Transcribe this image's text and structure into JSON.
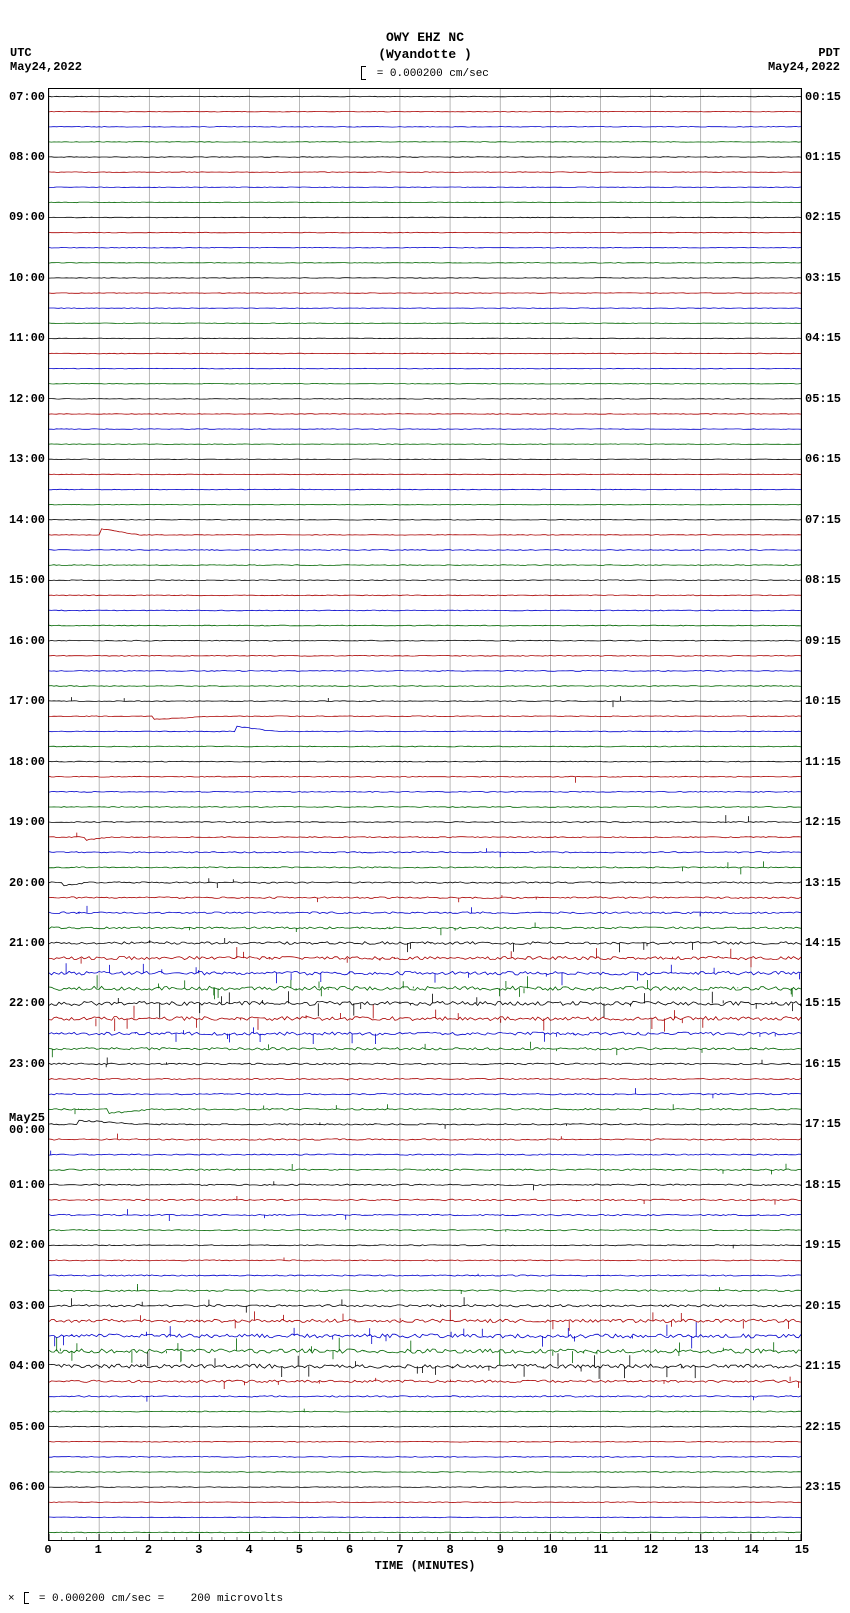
{
  "header": {
    "station": "OWY EHZ NC",
    "location": "(Wyandotte )",
    "scale_text": "= 0.000200 cm/sec"
  },
  "tz_left": "UTC",
  "date_left": "May24,2022",
  "tz_right": "PDT",
  "date_right": "May24,2022",
  "x_axis": {
    "title": "TIME (MINUTES)",
    "min": 0,
    "max": 15,
    "tick_step": 1,
    "minor_per_major": 4
  },
  "footer": {
    "text_left": "= 0.000200 cm/sec =",
    "text_right": "200 microvolts",
    "prefix": "×"
  },
  "plot": {
    "n_traces": 96,
    "colors_cycle": [
      "#000000",
      "#aa0000",
      "#0000cc",
      "#006600"
    ],
    "grid_color": "#bbbbbb",
    "grid_major_color": "#888888",
    "background": "#ffffff",
    "left_labels": [
      {
        "i": 0,
        "text": "07:00"
      },
      {
        "i": 4,
        "text": "08:00"
      },
      {
        "i": 8,
        "text": "09:00"
      },
      {
        "i": 12,
        "text": "10:00"
      },
      {
        "i": 16,
        "text": "11:00"
      },
      {
        "i": 20,
        "text": "12:00"
      },
      {
        "i": 24,
        "text": "13:00"
      },
      {
        "i": 28,
        "text": "14:00"
      },
      {
        "i": 32,
        "text": "15:00"
      },
      {
        "i": 36,
        "text": "16:00"
      },
      {
        "i": 40,
        "text": "17:00"
      },
      {
        "i": 44,
        "text": "18:00"
      },
      {
        "i": 48,
        "text": "19:00"
      },
      {
        "i": 52,
        "text": "20:00"
      },
      {
        "i": 56,
        "text": "21:00"
      },
      {
        "i": 60,
        "text": "22:00"
      },
      {
        "i": 64,
        "text": "23:00"
      },
      {
        "i": 68,
        "text": "May25\n00:00"
      },
      {
        "i": 72,
        "text": "01:00"
      },
      {
        "i": 76,
        "text": "02:00"
      },
      {
        "i": 80,
        "text": "03:00"
      },
      {
        "i": 84,
        "text": "04:00"
      },
      {
        "i": 88,
        "text": "05:00"
      },
      {
        "i": 92,
        "text": "06:00"
      }
    ],
    "right_labels": [
      {
        "i": 0,
        "text": "00:15"
      },
      {
        "i": 4,
        "text": "01:15"
      },
      {
        "i": 8,
        "text": "02:15"
      },
      {
        "i": 12,
        "text": "03:15"
      },
      {
        "i": 16,
        "text": "04:15"
      },
      {
        "i": 20,
        "text": "05:15"
      },
      {
        "i": 24,
        "text": "06:15"
      },
      {
        "i": 28,
        "text": "07:15"
      },
      {
        "i": 32,
        "text": "08:15"
      },
      {
        "i": 36,
        "text": "09:15"
      },
      {
        "i": 40,
        "text": "10:15"
      },
      {
        "i": 44,
        "text": "11:15"
      },
      {
        "i": 48,
        "text": "12:15"
      },
      {
        "i": 52,
        "text": "13:15"
      },
      {
        "i": 56,
        "text": "14:15"
      },
      {
        "i": 60,
        "text": "15:15"
      },
      {
        "i": 64,
        "text": "16:15"
      },
      {
        "i": 68,
        "text": "17:15"
      },
      {
        "i": 72,
        "text": "18:15"
      },
      {
        "i": 76,
        "text": "19:15"
      },
      {
        "i": 80,
        "text": "20:15"
      },
      {
        "i": 84,
        "text": "21:15"
      },
      {
        "i": 88,
        "text": "22:15"
      },
      {
        "i": 92,
        "text": "23:15"
      }
    ],
    "activity": [
      {
        "range": [
          0,
          27
        ],
        "noise": 0.6,
        "spikes": 0,
        "step": 0
      },
      {
        "range": [
          28,
          28
        ],
        "noise": 0.6,
        "spikes": 0,
        "step": 0
      },
      {
        "range": [
          29,
          29
        ],
        "noise": 0.6,
        "spikes": 0,
        "step": -6,
        "step_at": 0.07,
        "recover": 0.12
      },
      {
        "range": [
          30,
          39
        ],
        "noise": 0.8,
        "spikes": 0,
        "step": 0
      },
      {
        "range": [
          40,
          40
        ],
        "noise": 0.8,
        "spikes": 2,
        "step": 0,
        "extra_spikes": [
          {
            "x": 0.03,
            "a": 4
          },
          {
            "x": 0.1,
            "a": 3
          },
          {
            "x": 0.75,
            "a": -6
          },
          {
            "x": 0.76,
            "a": 5
          }
        ]
      },
      {
        "range": [
          41,
          41
        ],
        "noise": 0.8,
        "spikes": 0,
        "step": 3,
        "step_at": 0.14,
        "recover": 0.22
      },
      {
        "range": [
          42,
          42
        ],
        "noise": 0.8,
        "spikes": 0,
        "step": -5,
        "step_at": 0.25,
        "recover": 0.3
      },
      {
        "range": [
          43,
          44
        ],
        "noise": 0.8,
        "spikes": 0,
        "step": 0
      },
      {
        "range": [
          45,
          45
        ],
        "noise": 0.8,
        "spikes": 0,
        "step": 0,
        "extra_spikes": [
          {
            "x": 0.7,
            "a": -6
          }
        ]
      },
      {
        "range": [
          46,
          47
        ],
        "noise": 0.9,
        "spikes": 0,
        "step": 0
      },
      {
        "range": [
          48,
          48
        ],
        "noise": 1.0,
        "spikes": 0,
        "step": 0,
        "extra_spikes": [
          {
            "x": 0.9,
            "a": 7
          },
          {
            "x": 0.93,
            "a": 6
          }
        ]
      },
      {
        "range": [
          49,
          49
        ],
        "noise": 1.0,
        "spikes": 1,
        "step": 3,
        "step_at": 0.05,
        "recover": 0.08
      },
      {
        "range": [
          50,
          50
        ],
        "noise": 1.2,
        "spikes": 2,
        "step": 0,
        "extra_spikes": [
          {
            "x": 0.6,
            "a": -5
          }
        ]
      },
      {
        "range": [
          51,
          51
        ],
        "noise": 1.2,
        "spikes": 2,
        "step": 0,
        "extra_spikes": [
          {
            "x": 0.92,
            "a": -7
          },
          {
            "x": 0.95,
            "a": 6
          }
        ]
      },
      {
        "range": [
          52,
          52
        ],
        "noise": 1.4,
        "spikes": 3,
        "step": 3,
        "step_at": 0.02,
        "recover": 0.05
      },
      {
        "range": [
          53,
          53
        ],
        "noise": 1.6,
        "spikes": 4,
        "step": 0
      },
      {
        "range": [
          54,
          54
        ],
        "noise": 1.8,
        "spikes": 5,
        "step": 0
      },
      {
        "range": [
          55,
          55
        ],
        "noise": 2.0,
        "spikes": 6,
        "step": 0
      },
      {
        "range": [
          56,
          56
        ],
        "noise": 2.8,
        "spikes": 10,
        "step": 0
      },
      {
        "range": [
          57,
          57
        ],
        "noise": 3.2,
        "spikes": 14,
        "step": 0
      },
      {
        "range": [
          58,
          58
        ],
        "noise": 3.6,
        "spikes": 18,
        "step": 0
      },
      {
        "range": [
          59,
          59
        ],
        "noise": 4.0,
        "spikes": 22,
        "step": 0
      },
      {
        "range": [
          60,
          60
        ],
        "noise": 4.2,
        "spikes": 24,
        "step": 0
      },
      {
        "range": [
          61,
          61
        ],
        "noise": 4.0,
        "spikes": 22,
        "step": 0
      },
      {
        "range": [
          62,
          62
        ],
        "noise": 3.2,
        "spikes": 16,
        "step": 0
      },
      {
        "range": [
          63,
          63
        ],
        "noise": 2.4,
        "spikes": 10,
        "step": 0
      },
      {
        "range": [
          64,
          64
        ],
        "noise": 1.6,
        "spikes": 4,
        "step": 0
      },
      {
        "range": [
          65,
          65
        ],
        "noise": 1.2,
        "spikes": 2,
        "step": 0
      },
      {
        "range": [
          66,
          66
        ],
        "noise": 1.4,
        "spikes": 3,
        "step": 0,
        "extra_spikes": [
          {
            "x": 0.78,
            "a": 6
          }
        ]
      },
      {
        "range": [
          67,
          67
        ],
        "noise": 1.6,
        "spikes": 4,
        "step": 4,
        "step_at": 0.08,
        "recover": 0.14,
        "extra_spikes": [
          {
            "x": 0.45,
            "a": 5
          },
          {
            "x": 0.83,
            "a": 5
          }
        ]
      },
      {
        "range": [
          68,
          68
        ],
        "noise": 1.4,
        "spikes": 3,
        "step": -4,
        "step_at": 0.04,
        "recover": 0.12
      },
      {
        "range": [
          69,
          69
        ],
        "noise": 1.4,
        "spikes": 3,
        "step": 0
      },
      {
        "range": [
          70,
          70
        ],
        "noise": 1.2,
        "spikes": 2,
        "step": 0
      },
      {
        "range": [
          71,
          71
        ],
        "noise": 1.4,
        "spikes": 3,
        "step": 0,
        "extra_spikes": [
          {
            "x": 0.98,
            "a": 6
          }
        ]
      },
      {
        "range": [
          72,
          72
        ],
        "noise": 1.4,
        "spikes": 3,
        "step": 0
      },
      {
        "range": [
          73,
          73
        ],
        "noise": 1.6,
        "spikes": 4,
        "step": 0
      },
      {
        "range": [
          74,
          74
        ],
        "noise": 1.4,
        "spikes": 3,
        "step": 0,
        "extra_spikes": [
          {
            "x": 0.16,
            "a": -6
          }
        ]
      },
      {
        "range": [
          75,
          75
        ],
        "noise": 1.2,
        "spikes": 2,
        "step": 0
      },
      {
        "range": [
          76,
          76
        ],
        "noise": 1.0,
        "spikes": 1,
        "step": 0
      },
      {
        "range": [
          77,
          77
        ],
        "noise": 1.0,
        "spikes": 1,
        "step": 0
      },
      {
        "range": [
          78,
          78
        ],
        "noise": 1.2,
        "spikes": 2,
        "step": 0
      },
      {
        "range": [
          79,
          79
        ],
        "noise": 1.6,
        "spikes": 4,
        "step": 0
      },
      {
        "range": [
          80,
          80
        ],
        "noise": 2.2,
        "spikes": 8,
        "step": 0
      },
      {
        "range": [
          81,
          81
        ],
        "noise": 3.4,
        "spikes": 18,
        "step": 0
      },
      {
        "range": [
          82,
          82
        ],
        "noise": 4.0,
        "spikes": 24,
        "step": 0
      },
      {
        "range": [
          83,
          83
        ],
        "noise": 4.2,
        "spikes": 26,
        "step": 0
      },
      {
        "range": [
          84,
          84
        ],
        "noise": 4.0,
        "spikes": 24,
        "step": 0
      },
      {
        "range": [
          85,
          85
        ],
        "noise": 2.4,
        "spikes": 10,
        "step": 0
      },
      {
        "range": [
          86,
          86
        ],
        "noise": 1.4,
        "spikes": 3,
        "step": 0
      },
      {
        "range": [
          87,
          87
        ],
        "noise": 1.0,
        "spikes": 1,
        "step": 0
      },
      {
        "range": [
          88,
          91
        ],
        "noise": 0.8,
        "spikes": 0,
        "step": 0
      },
      {
        "range": [
          92,
          95
        ],
        "noise": 0.7,
        "spikes": 0,
        "step": 0
      }
    ]
  }
}
